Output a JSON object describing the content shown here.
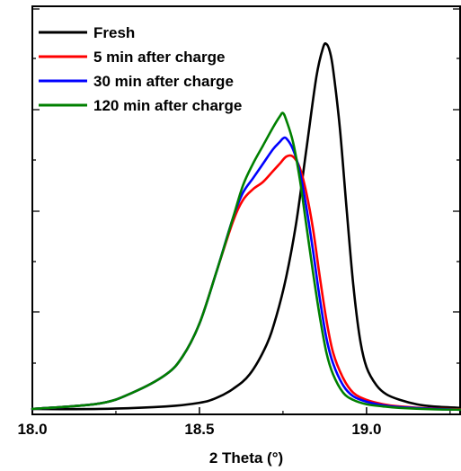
{
  "chart_data": {
    "type": "line",
    "title": "",
    "xlabel": "2 Theta (°)",
    "ylabel": "",
    "xlim": [
      18.0,
      19.28
    ],
    "ylim": [
      0,
      1.0
    ],
    "x_ticks": [
      18.0,
      18.5,
      19.0
    ],
    "x_tick_labels": [
      "18.0",
      "18.5",
      "19.0"
    ],
    "y_ticks": [
      0.25,
      0.5,
      0.75
    ],
    "y_tick_labels_shown": false,
    "grid": false,
    "legend_position": "top-left",
    "series": [
      {
        "name": "Fresh",
        "color": "#000000",
        "x": [
          18.0,
          18.2,
          18.4,
          18.5,
          18.55,
          18.6,
          18.65,
          18.7,
          18.73,
          18.76,
          18.79,
          18.82,
          18.85,
          18.87,
          18.88,
          18.89,
          18.9,
          18.92,
          18.94,
          18.96,
          18.98,
          19.0,
          19.03,
          19.06,
          19.1,
          19.15,
          19.2,
          19.28
        ],
        "y": [
          0.005,
          0.005,
          0.012,
          0.022,
          0.035,
          0.06,
          0.1,
          0.18,
          0.26,
          0.37,
          0.52,
          0.72,
          0.92,
          1.0,
          1.01,
          0.99,
          0.94,
          0.78,
          0.56,
          0.35,
          0.2,
          0.12,
          0.07,
          0.045,
          0.03,
          0.018,
          0.012,
          0.008
        ]
      },
      {
        "name": "5 min after charge",
        "color": "#ff0000",
        "x": [
          18.0,
          18.2,
          18.3,
          18.4,
          18.45,
          18.5,
          18.55,
          18.6,
          18.63,
          18.66,
          18.69,
          18.72,
          18.74,
          18.76,
          18.78,
          18.8,
          18.82,
          18.84,
          18.86,
          18.88,
          18.9,
          18.93,
          18.96,
          19.0,
          19.05,
          19.1,
          19.2,
          19.28
        ],
        "y": [
          0.005,
          0.02,
          0.05,
          0.1,
          0.15,
          0.24,
          0.38,
          0.52,
          0.58,
          0.61,
          0.63,
          0.66,
          0.68,
          0.7,
          0.7,
          0.67,
          0.6,
          0.5,
          0.37,
          0.25,
          0.16,
          0.09,
          0.05,
          0.03,
          0.018,
          0.012,
          0.006,
          0.004
        ]
      },
      {
        "name": "30 min after charge",
        "color": "#0000ff",
        "x": [
          18.0,
          18.2,
          18.3,
          18.4,
          18.45,
          18.5,
          18.55,
          18.6,
          18.63,
          18.66,
          18.69,
          18.72,
          18.74,
          18.75,
          18.76,
          18.78,
          18.8,
          18.82,
          18.84,
          18.86,
          18.88,
          18.9,
          18.93,
          18.96,
          19.0,
          19.05,
          19.1,
          19.2,
          19.28
        ],
        "y": [
          0.005,
          0.02,
          0.05,
          0.1,
          0.15,
          0.24,
          0.38,
          0.53,
          0.6,
          0.64,
          0.68,
          0.72,
          0.74,
          0.75,
          0.75,
          0.72,
          0.66,
          0.56,
          0.44,
          0.31,
          0.2,
          0.13,
          0.07,
          0.04,
          0.025,
          0.015,
          0.01,
          0.005,
          0.003
        ]
      },
      {
        "name": "120 min after charge",
        "color": "#008000",
        "x": [
          18.0,
          18.2,
          18.3,
          18.4,
          18.45,
          18.5,
          18.55,
          18.6,
          18.63,
          18.66,
          18.69,
          18.72,
          18.74,
          18.75,
          18.76,
          18.78,
          18.8,
          18.82,
          18.84,
          18.86,
          18.88,
          18.9,
          18.93,
          18.96,
          19.0,
          19.05,
          19.1,
          19.2,
          19.28
        ],
        "y": [
          0.005,
          0.02,
          0.05,
          0.1,
          0.15,
          0.24,
          0.38,
          0.53,
          0.62,
          0.68,
          0.73,
          0.78,
          0.81,
          0.82,
          0.8,
          0.74,
          0.64,
          0.51,
          0.38,
          0.26,
          0.16,
          0.1,
          0.05,
          0.03,
          0.018,
          0.012,
          0.008,
          0.004,
          0.003
        ]
      }
    ]
  }
}
